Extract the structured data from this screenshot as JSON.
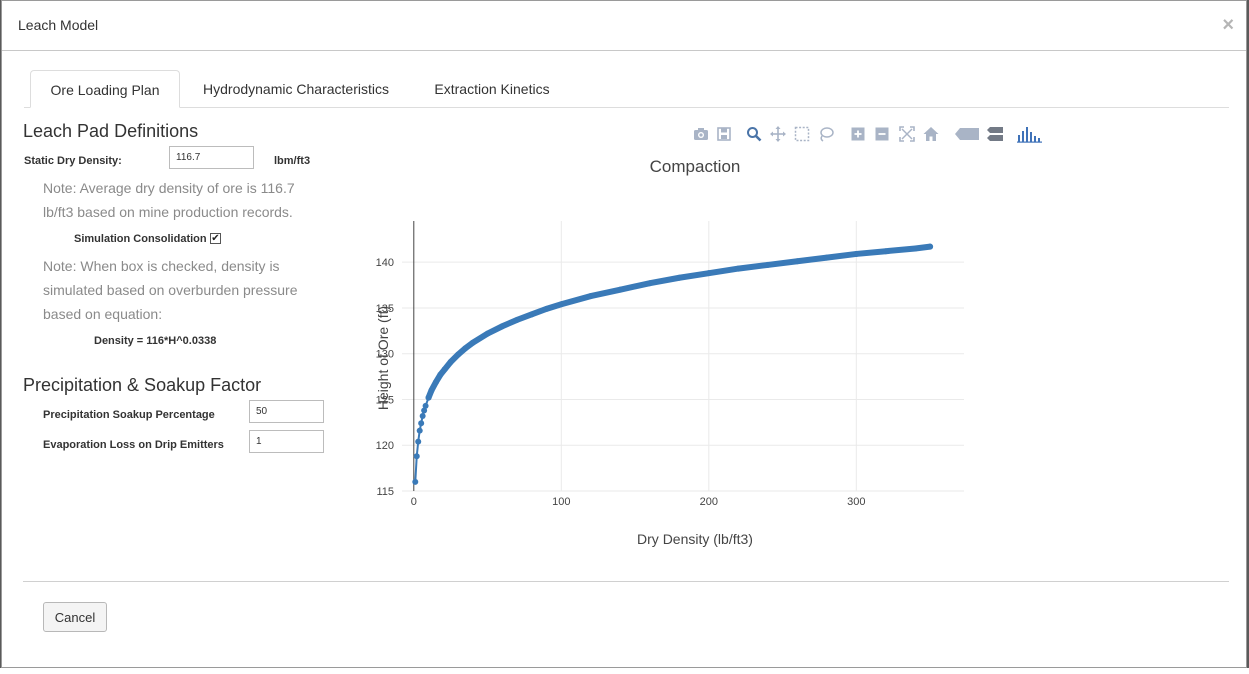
{
  "modal": {
    "title": "Leach Model",
    "close_label": "×"
  },
  "tabs": [
    {
      "label": "Ore Loading Plan",
      "active": true
    },
    {
      "label": "Hydrodynamic Characteristics",
      "active": false
    },
    {
      "label": "Extraction Kinetics",
      "active": false
    }
  ],
  "leach_pad": {
    "title": "Leach Pad Definitions",
    "static_density_label": "Static Dry Density:",
    "static_density_value": "116.7",
    "static_density_unit": "lbm/ft3",
    "note1_line1": "Note: Average dry density of ore is 116.7",
    "note1_line2": "lb/ft3 based on mine production records.",
    "consolidation_label": "Simulation Consolidation",
    "consolidation_checked": true,
    "consolidation_check_glyph": "✔",
    "note2_line1": "Note: When box is checked, density is",
    "note2_line2": "simulated based on overburden pressure",
    "note2_line3": "based on equation:",
    "equation": "Density = 116*H^0.0338"
  },
  "precipitation": {
    "title": "Precipitation & Soakup Factor",
    "soakup_label": "Precipitation Soakup Percentage",
    "soakup_value": "50",
    "evaporation_label": "Evaporation Loss on Drip Emitters",
    "evaporation_value": "1"
  },
  "toolbar": {
    "icons": [
      "camera-icon",
      "save-icon",
      "zoom-icon",
      "pan-icon",
      "box-select-icon",
      "lasso-select-icon",
      "zoom-in-icon",
      "zoom-out-icon",
      "autoscale-icon",
      "reset-axes-icon",
      "hover-closest-icon",
      "hover-compare-icon",
      "plotly-logo-icon"
    ]
  },
  "footer": {
    "cancel_label": "Cancel"
  },
  "colors": {
    "series": "#3a7ab8",
    "toolbar_icon": "#a9b4c6",
    "toolbar_active": "#4a74a8"
  },
  "chart_data": {
    "type": "scatter",
    "title": "Compaction",
    "xlabel": "Dry Density (lb/ft3)",
    "ylabel": "Height of Ore (ft)",
    "xlim": [
      -8,
      373
    ],
    "ylim": [
      115,
      144.5
    ],
    "xticks": [
      0,
      100,
      200,
      300
    ],
    "yticks": [
      115,
      120,
      125,
      130,
      135,
      140
    ],
    "grid": true,
    "equation": "y = 116 * x^0.0338",
    "x": [
      1,
      2,
      3,
      4,
      5,
      6,
      7,
      8,
      10,
      12,
      15,
      18,
      21,
      25,
      30,
      35,
      40,
      50,
      60,
      70,
      80,
      90,
      100,
      120,
      140,
      160,
      180,
      200,
      220,
      240,
      260,
      280,
      300,
      320,
      340,
      350
    ],
    "y": [
      116.0,
      118.8,
      120.4,
      121.6,
      122.4,
      123.2,
      123.8,
      124.3,
      125.2,
      126.0,
      126.9,
      127.7,
      128.3,
      129.1,
      129.9,
      130.6,
      131.2,
      132.2,
      133.0,
      133.7,
      134.3,
      134.9,
      135.4,
      136.3,
      137.0,
      137.7,
      138.3,
      138.8,
      139.3,
      139.7,
      140.1,
      140.5,
      140.9,
      141.2,
      141.5,
      141.7
    ]
  }
}
